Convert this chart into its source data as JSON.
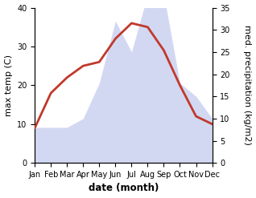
{
  "months": [
    "Jan",
    "Feb",
    "Mar",
    "Apr",
    "May",
    "Jun",
    "Jul",
    "Aug",
    "Sep",
    "Oct",
    "Nov",
    "Dec"
  ],
  "temperature": [
    9,
    18,
    22,
    25,
    26,
    32,
    36,
    35,
    29,
    20,
    12,
    10
  ],
  "precipitation": [
    8,
    8,
    8,
    10,
    18,
    32,
    25,
    38,
    38,
    18,
    15,
    10
  ],
  "temp_color": "#c0392b",
  "precip_color": "#b0b8e8",
  "precip_alpha": 0.55,
  "temp_ylim": [
    0,
    40
  ],
  "precip_ylim": [
    0,
    35
  ],
  "temp_yticks": [
    0,
    10,
    20,
    30,
    40
  ],
  "precip_yticks": [
    0,
    5,
    10,
    15,
    20,
    25,
    30,
    35
  ],
  "xlabel": "date (month)",
  "ylabel_left": "max temp (C)",
  "ylabel_right": "med. precipitation (kg/m2)",
  "temp_linewidth": 2.0,
  "xlabel_fontsize": 8.5,
  "ylabel_fontsize": 8,
  "tick_fontsize": 7
}
